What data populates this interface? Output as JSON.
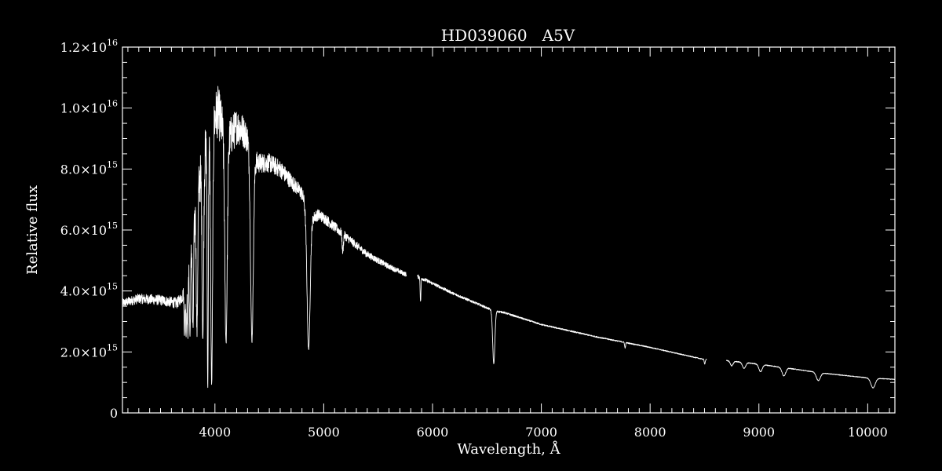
{
  "colors": {
    "background": "#000000",
    "foreground": "#ffffff"
  },
  "chart_data": {
    "type": "line",
    "title": "HD039060   A5V",
    "xlabel": "Wavelength, Å",
    "ylabel": "Relative flux",
    "xlim": [
      3150,
      10250
    ],
    "ylim": [
      0,
      1.2e+16
    ],
    "grid": false,
    "legend": "none",
    "x_ticks": [
      {
        "value": 4000,
        "label": "4000"
      },
      {
        "value": 5000,
        "label": "5000"
      },
      {
        "value": 6000,
        "label": "6000"
      },
      {
        "value": 7000,
        "label": "7000"
      },
      {
        "value": 8000,
        "label": "8000"
      },
      {
        "value": 9000,
        "label": "9000"
      },
      {
        "value": 10000,
        "label": "10000"
      }
    ],
    "y_ticks": [
      {
        "value": 0,
        "mantissa": "0",
        "exponent": ""
      },
      {
        "value": 2000000000000000.0,
        "mantissa": "2.0×10",
        "exponent": "15"
      },
      {
        "value": 4000000000000000.0,
        "mantissa": "4.0×10",
        "exponent": "15"
      },
      {
        "value": 6000000000000000.0,
        "mantissa": "6.0×10",
        "exponent": "15"
      },
      {
        "value": 8000000000000000.0,
        "mantissa": "8.0×10",
        "exponent": "15"
      },
      {
        "value": 1e+16,
        "mantissa": "1.0×10",
        "exponent": "16"
      },
      {
        "value": 1.2e+16,
        "mantissa": "1.2×10",
        "exponent": "16"
      }
    ],
    "series_continuum": [
      [
        3150,
        3600000000000000.0
      ],
      [
        3300,
        3750000000000000.0
      ],
      [
        3500,
        3700000000000000.0
      ],
      [
        3650,
        3600000000000000.0
      ],
      [
        3700,
        3800000000000000.0
      ],
      [
        3760,
        4700000000000000.0
      ],
      [
        3800,
        6000000000000000.0
      ],
      [
        3850,
        7400000000000000.0
      ],
      [
        3900,
        8400000000000000.0
      ],
      [
        3950,
        9000000000000000.0
      ],
      [
        4000,
        9700000000000000.0
      ],
      [
        4030,
        9900000000000000.0
      ],
      [
        4050,
        9600000000000000.0
      ],
      [
        4100,
        9000000000000000.0
      ],
      [
        4150,
        9100000000000000.0
      ],
      [
        4200,
        9400000000000000.0
      ],
      [
        4250,
        9300000000000000.0
      ],
      [
        4300,
        9000000000000000.0
      ],
      [
        4360,
        8300000000000000.0
      ],
      [
        4400,
        8200000000000000.0
      ],
      [
        4500,
        8200000000000000.0
      ],
      [
        4600,
        8000000000000000.0
      ],
      [
        4700,
        7600000000000000.0
      ],
      [
        4800,
        7200000000000000.0
      ],
      [
        4850,
        6600000000000000.0
      ],
      [
        4900,
        6400000000000000.0
      ],
      [
        4950,
        6500000000000000.0
      ],
      [
        5000,
        6400000000000000.0
      ],
      [
        5200,
        5800000000000000.0
      ],
      [
        5400,
        5200000000000000.0
      ],
      [
        5600,
        4800000000000000.0
      ],
      [
        5750,
        4550000000000000.0
      ],
      [
        5850,
        4500000000000000.0
      ],
      [
        6000,
        4250000000000000.0
      ],
      [
        6200,
        3900000000000000.0
      ],
      [
        6400,
        3600000000000000.0
      ],
      [
        6560,
        3350000000000000.0
      ],
      [
        6650,
        3300000000000000.0
      ],
      [
        7000,
        2900000000000000.0
      ],
      [
        7500,
        2500000000000000.0
      ],
      [
        8000,
        2150000000000000.0
      ],
      [
        8500,
        1750000000000000.0
      ],
      [
        8700,
        1720000000000000.0
      ],
      [
        9000,
        1600000000000000.0
      ],
      [
        9300,
        1450000000000000.0
      ],
      [
        9600,
        1300000000000000.0
      ],
      [
        10000,
        1150000000000000.0
      ],
      [
        10250,
        1100000000000000.0
      ]
    ],
    "absorption_lines": [
      {
        "x": 3720,
        "depth": 0.35,
        "width": 6
      },
      {
        "x": 3735,
        "depth": 0.4,
        "width": 6
      },
      {
        "x": 3750,
        "depth": 0.45,
        "width": 6
      },
      {
        "x": 3771,
        "depth": 0.5,
        "width": 7
      },
      {
        "x": 3798,
        "depth": 0.55,
        "width": 8
      },
      {
        "x": 3835,
        "depth": 0.62,
        "width": 9
      },
      {
        "x": 3889,
        "depth": 0.7,
        "width": 10
      },
      {
        "x": 3934,
        "depth": 0.91,
        "width": 7
      },
      {
        "x": 3970,
        "depth": 0.9,
        "width": 12
      },
      {
        "x": 4102,
        "depth": 0.74,
        "width": 16
      },
      {
        "x": 4340,
        "depth": 0.72,
        "width": 18
      },
      {
        "x": 4861,
        "depth": 0.68,
        "width": 20
      },
      {
        "x": 5175,
        "depth": 0.1,
        "width": 8
      },
      {
        "x": 5890,
        "depth": 0.18,
        "width": 5
      },
      {
        "x": 6563,
        "depth": 0.52,
        "width": 14
      },
      {
        "x": 7770,
        "depth": 0.08,
        "width": 6
      },
      {
        "x": 8502,
        "depth": 0.08,
        "width": 6
      },
      {
        "x": 8545,
        "depth": 0.08,
        "width": 6
      },
      {
        "x": 8750,
        "depth": 0.09,
        "width": 18
      },
      {
        "x": 8863,
        "depth": 0.12,
        "width": 20
      },
      {
        "x": 9015,
        "depth": 0.15,
        "width": 22
      },
      {
        "x": 9229,
        "depth": 0.18,
        "width": 24
      },
      {
        "x": 9546,
        "depth": 0.2,
        "width": 26
      },
      {
        "x": 10049,
        "depth": 0.28,
        "width": 28
      }
    ],
    "gaps": [
      [
        5760,
        5860
      ],
      [
        8520,
        8700
      ]
    ],
    "noise_fraction": [
      [
        3150,
        0.04
      ],
      [
        3700,
        0.05
      ],
      [
        3750,
        0.12
      ],
      [
        4400,
        0.04
      ],
      [
        4900,
        0.03
      ],
      [
        5500,
        0.02
      ],
      [
        6000,
        0.012
      ],
      [
        7000,
        0.008
      ],
      [
        8000,
        0.008
      ],
      [
        10250,
        0.01
      ]
    ]
  }
}
